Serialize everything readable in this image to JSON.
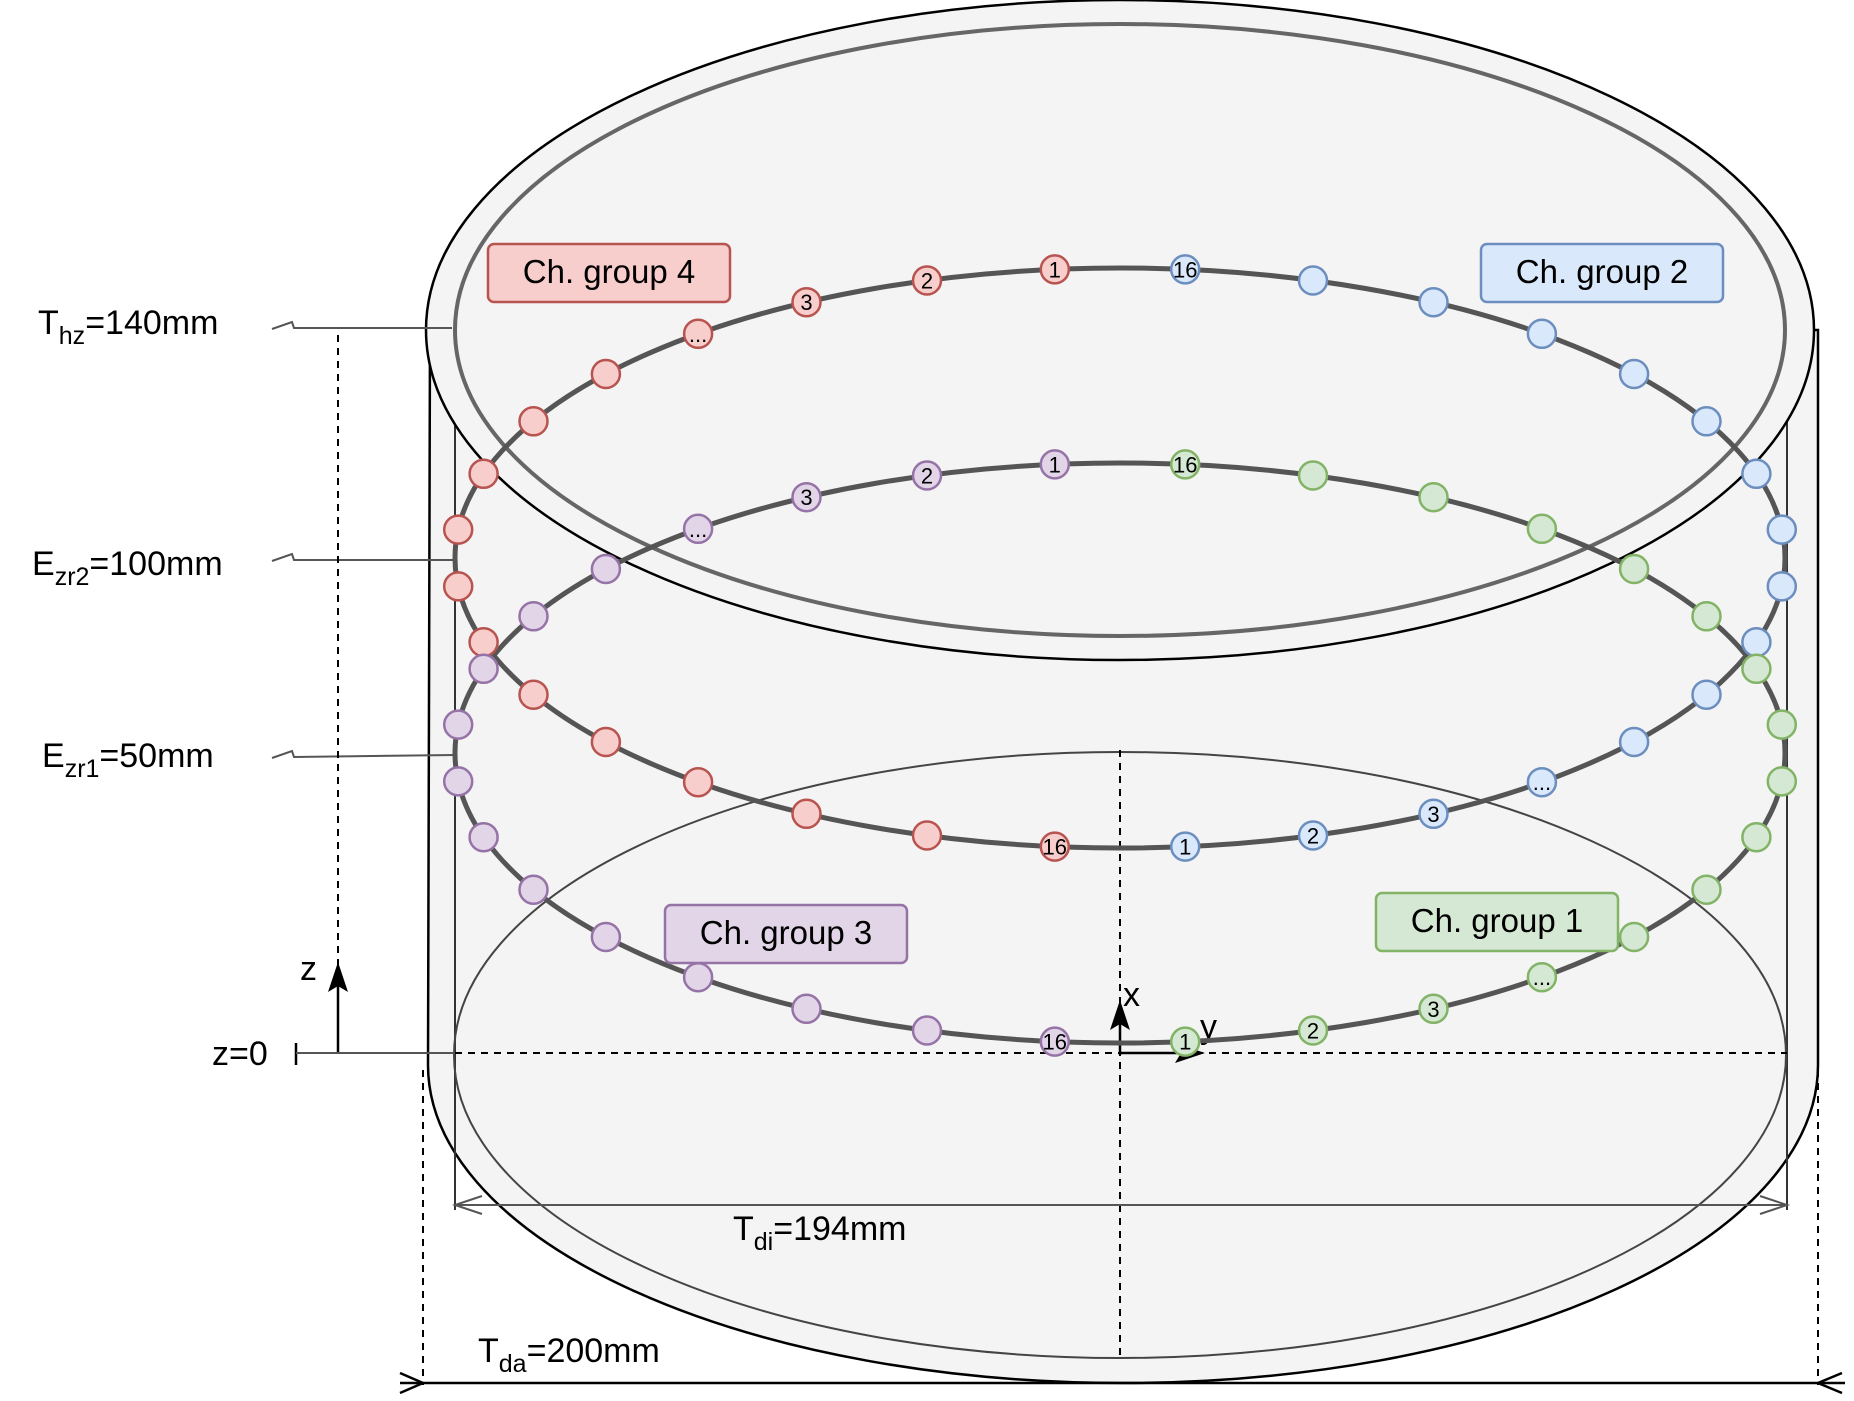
{
  "dimensions": {
    "thz": {
      "main": "T",
      "sub": "hz",
      "value": "=140mm"
    },
    "ezr2": {
      "main": "E",
      "sub": "zr2",
      "value": "=100mm"
    },
    "ezr1": {
      "main": "E",
      "sub": "zr1",
      "value": "=50mm"
    },
    "z0": "z=0",
    "tdi": {
      "main": "T",
      "sub": "di",
      "value": "=194mm"
    },
    "tda": {
      "main": "T",
      "sub": "da",
      "value": "=200mm"
    }
  },
  "axes": {
    "z": "z",
    "x": "x",
    "y": "y"
  },
  "groups": [
    {
      "id": "g1",
      "label": "Ch. group 1",
      "fill": "#d5e8d4",
      "stroke": "#82b366"
    },
    {
      "id": "g2",
      "label": "Ch. group 2",
      "fill": "#dae8fc",
      "stroke": "#6c8ebf"
    },
    {
      "id": "g3",
      "label": "Ch. group 3",
      "fill": "#e1d5e7",
      "stroke": "#9673a6"
    },
    {
      "id": "g4",
      "label": "Ch. group 4",
      "fill": "#f8cecc",
      "stroke": "#b85450"
    }
  ],
  "rings": {
    "upper": {
      "groups": [
        "g2",
        "g4"
      ],
      "height": "E_zr2 = 100mm"
    },
    "lower": {
      "groups": [
        "g1",
        "g3"
      ],
      "height": "E_zr1 = 50mm"
    }
  },
  "electrode_labels": {
    "first": "1",
    "second": "2",
    "third": "3",
    "ellipsis": "...",
    "last": "16"
  }
}
